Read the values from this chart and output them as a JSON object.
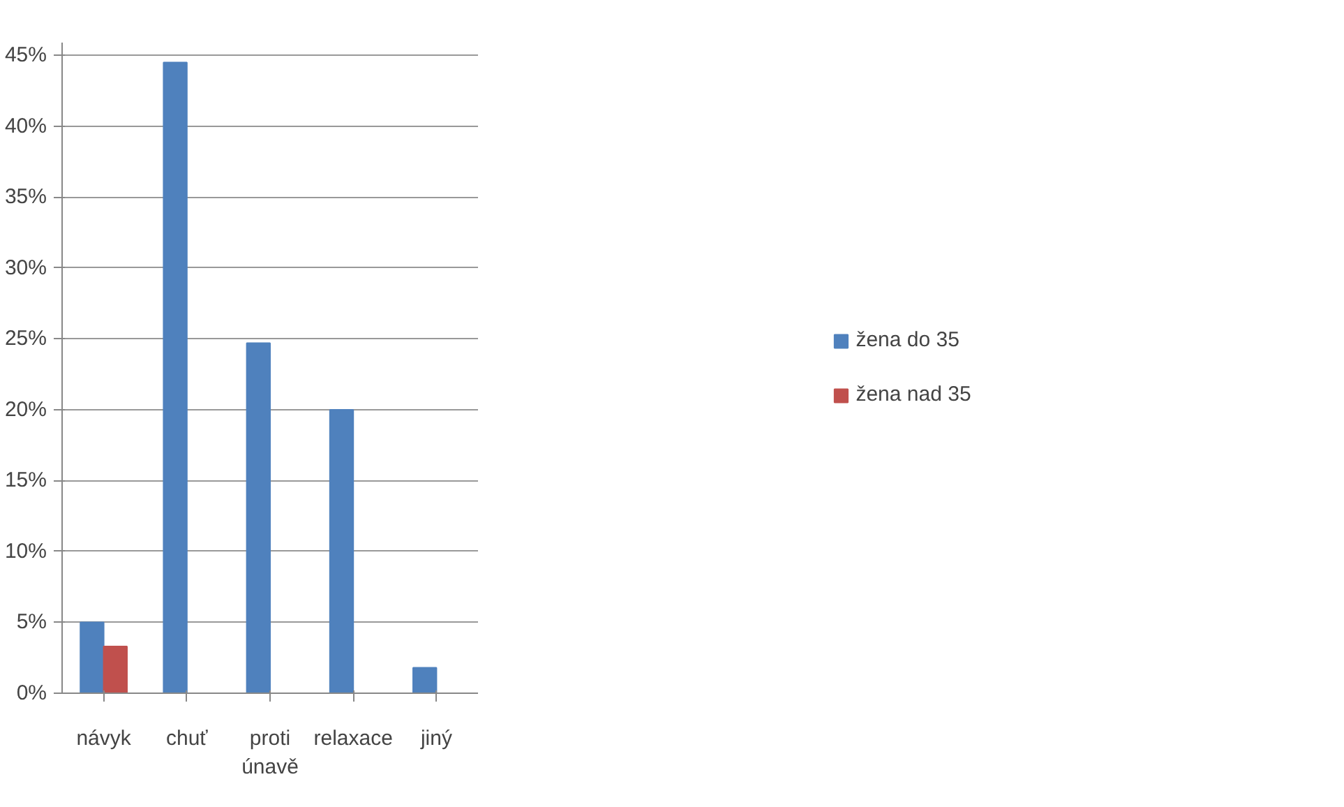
{
  "chart_data": {
    "type": "bar",
    "categories": [
      "návyk",
      "chuť",
      "proti únavě",
      "relaxace",
      "jiný"
    ],
    "series": [
      {
        "name": "žena do 35",
        "color": "#4f81bd",
        "values": [
          5,
          44.5,
          24.7,
          20,
          1.8
        ]
      },
      {
        "name": "žena nad 35",
        "color": "#c0504d",
        "values": [
          3.3,
          0,
          0,
          0,
          0
        ]
      }
    ],
    "ylim": [
      0,
      45
    ],
    "yticks": [
      {
        "value": 0,
        "label": "0%"
      },
      {
        "value": 5,
        "label": "5%"
      },
      {
        "value": 10,
        "label": "10%"
      },
      {
        "value": 15,
        "label": "15%"
      },
      {
        "value": 20,
        "label": "20%"
      },
      {
        "value": 25,
        "label": "25%"
      },
      {
        "value": 30,
        "label": "30%"
      },
      {
        "value": 35,
        "label": "35%"
      },
      {
        "value": 40,
        "label": "40%"
      },
      {
        "value": 45,
        "label": "45%"
      }
    ],
    "grid": "y",
    "legend": "right"
  }
}
